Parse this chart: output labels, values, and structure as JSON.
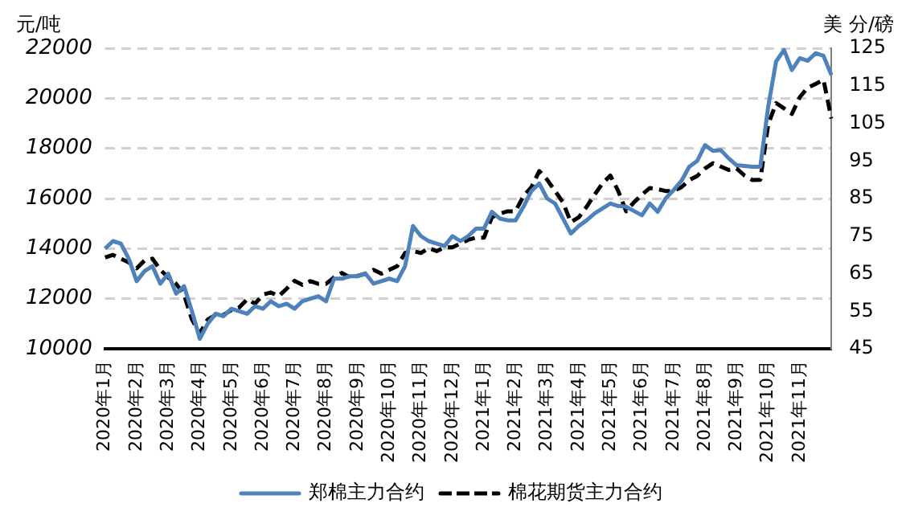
{
  "chart_data": {
    "type": "line",
    "ylabel": "元/吨",
    "y2label": "美 分/磅",
    "categories": [
      "2020年1月",
      null,
      null,
      null,
      "2020年2月",
      null,
      null,
      null,
      "2020年3月",
      null,
      null,
      null,
      "2020年4月",
      null,
      null,
      null,
      "2020年5月",
      null,
      null,
      null,
      "2020年6月",
      null,
      null,
      null,
      "2020年7月",
      null,
      null,
      null,
      "2020年8月",
      null,
      null,
      null,
      "2020年9月",
      null,
      null,
      null,
      "2020年10月",
      null,
      null,
      null,
      "2020年11月",
      null,
      null,
      null,
      "2020年12月",
      null,
      null,
      null,
      "2021年1月",
      null,
      null,
      null,
      "2021年2月",
      null,
      null,
      null,
      "2021年3月",
      null,
      null,
      null,
      "2021年4月",
      null,
      null,
      null,
      "2021年5月",
      null,
      null,
      null,
      "2021年6月",
      null,
      null,
      null,
      "2021年7月",
      null,
      null,
      null,
      "2021年8月",
      null,
      null,
      null,
      "2021年9月",
      null,
      null,
      null,
      "2021年10月",
      null,
      null,
      null,
      "2021年11月",
      null,
      null,
      null,
      null
    ],
    "series": [
      {
        "name": "郑棉主力合约",
        "color": "#4f81bd",
        "line_style": "solid",
        "values": [
          14000,
          14300,
          14200,
          13600,
          12700,
          13100,
          13300,
          12600,
          13000,
          12200,
          12500,
          11500,
          10400,
          11000,
          11400,
          11300,
          11600,
          11500,
          11400,
          11700,
          11600,
          11900,
          11700,
          11800,
          11600,
          11900,
          12000,
          12100,
          11900,
          12800,
          12800,
          12900,
          12900,
          13000,
          12600,
          12700,
          12800,
          12700,
          13300,
          14900,
          14500,
          14300,
          14200,
          14100,
          14500,
          14300,
          14500,
          14800,
          14800,
          15470,
          15200,
          15130,
          15130,
          15670,
          16300,
          16600,
          16000,
          15800,
          15200,
          14600,
          14900,
          15130,
          15400,
          15600,
          15800,
          15700,
          15670,
          15500,
          15330,
          15800,
          15470,
          16000,
          16330,
          16700,
          17270,
          17500,
          18130,
          17900,
          17930,
          17600,
          17330,
          17300,
          17270,
          17270,
          19670,
          21470,
          21930,
          21130,
          21600,
          21500,
          21800,
          21700,
          20930
        ]
      },
      {
        "name": "棉花期货主力合约",
        "color": "#000000",
        "line_style": "dashed",
        "axis": "y2",
        "values": [
          69.3,
          70,
          69,
          68,
          66.4,
          68.5,
          69,
          66,
          64,
          62.3,
          59.4,
          52.8,
          49.1,
          52.8,
          54,
          54,
          55.3,
          56,
          58.2,
          57,
          59.4,
          60,
          59,
          61,
          63.1,
          62,
          63,
          62.3,
          62.3,
          64,
          65.2,
          64,
          64.4,
          65,
          66,
          65,
          66,
          67,
          70.5,
          71,
          70.5,
          71.8,
          71,
          72,
          72,
          73,
          74,
          74.6,
          74.6,
          80,
          81,
          81.6,
          81.6,
          85.7,
          88,
          92.3,
          90,
          87,
          84,
          78.7,
          80,
          82.8,
          86,
          89,
          91.1,
          87,
          81.6,
          84,
          86,
          87.8,
          87.5,
          87,
          87,
          88,
          89.9,
          91,
          93,
          94.4,
          93.5,
          92.6,
          93,
          91.1,
          89.9,
          90,
          104.7,
          110.4,
          109,
          107.5,
          112,
          114.5,
          115.5,
          116.6,
          106.3
        ]
      }
    ],
    "ylim": [
      10000,
      22000
    ],
    "yticks": [
      10000,
      12000,
      14000,
      16000,
      18000,
      20000,
      22000
    ],
    "y2lim": [
      45,
      125
    ],
    "y2ticks": [
      45,
      55,
      65,
      75,
      85,
      95,
      105,
      115,
      125
    ],
    "grid": "y",
    "legend": "bottom",
    "marker": "none"
  }
}
